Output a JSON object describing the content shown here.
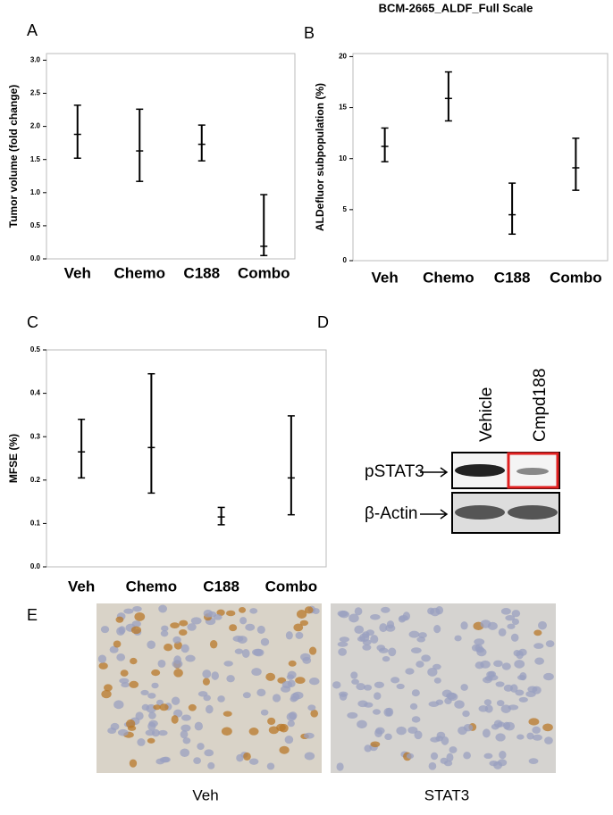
{
  "chart_data": [
    {
      "type": "errorbar",
      "panel": "A",
      "ylabel": "Tumor volume (fold change)",
      "categories": [
        "Veh",
        "Chemo",
        "C188",
        "Combo"
      ],
      "values": [
        1.88,
        1.63,
        1.73,
        0.19
      ],
      "lower": [
        1.52,
        1.17,
        1.48,
        0.05
      ],
      "upper": [
        2.32,
        2.26,
        2.02,
        0.97
      ],
      "color": "#000000",
      "ylim": [
        0,
        3.1
      ],
      "yticks": [
        {
          "value": 0,
          "label": "0.0"
        },
        {
          "value": 0.5,
          "label": "0.5"
        },
        {
          "value": 1,
          "label": "1.0"
        },
        {
          "value": 1.5,
          "label": "1.5"
        },
        {
          "value": 2,
          "label": "2.0"
        },
        {
          "value": 2.5,
          "label": "2.5"
        },
        {
          "value": 3,
          "label": "3.0"
        }
      ]
    },
    {
      "type": "errorbar",
      "panel": "B",
      "title": "BCM-2665_ALDF_Full Scale",
      "ylabel": "ALDefluor subpopulation (%)",
      "categories": [
        "Veh",
        "Chemo",
        "C188",
        "Combo"
      ],
      "values": [
        11.2,
        15.9,
        4.5,
        9.1
      ],
      "lower": [
        9.7,
        13.7,
        2.6,
        6.9
      ],
      "upper": [
        13.0,
        18.5,
        7.6,
        12.0
      ],
      "color": "#000000",
      "ylim": [
        0,
        20.3
      ],
      "yticks": [
        0,
        5,
        10,
        15,
        20
      ]
    },
    {
      "type": "errorbar",
      "panel": "C",
      "ylabel": "MFSE (%)",
      "categories": [
        "Veh",
        "Chemo",
        "C188",
        "Combo"
      ],
      "values": [
        0.265,
        0.275,
        0.115,
        0.205
      ],
      "lower": [
        0.205,
        0.17,
        0.097,
        0.12
      ],
      "upper": [
        0.34,
        0.445,
        0.137,
        0.348
      ],
      "color": "#000000",
      "ylim": [
        0,
        0.5
      ],
      "yticks": [
        {
          "value": 0,
          "label": "0.0"
        },
        {
          "value": 0.1,
          "label": "0.1"
        },
        {
          "value": 0.2,
          "label": "0.2"
        },
        {
          "value": 0.3,
          "label": "0.3"
        },
        {
          "value": 0.4,
          "label": "0.4"
        },
        {
          "value": 0.5,
          "label": "0.5"
        }
      ]
    }
  ],
  "blot": {
    "panel": "D",
    "lanes": [
      "Vehicle",
      "Cmpd188"
    ],
    "bands": [
      "pSTAT3",
      "β-Actin"
    ]
  },
  "histology": {
    "panel": "E",
    "captions": [
      "Veh",
      "STAT3"
    ]
  }
}
